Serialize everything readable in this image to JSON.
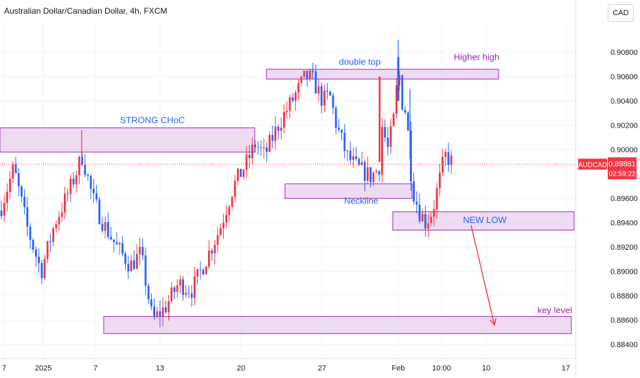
{
  "header": {
    "title": "Australian Dollar/Canadian Dollar, 4h, FXCM",
    "currency": "CAD"
  },
  "price_tag": {
    "symbol": "AUDCAD",
    "price": "0.89881",
    "countdown": "02:59:22",
    "color": "#f23645"
  },
  "colors": {
    "up": "#f23645",
    "down": "#2962ff",
    "zone_fill": "#e1bee7",
    "zone_stroke": "#9c27b0",
    "label_blue": "#2962ff",
    "label_purple": "#9c27b0",
    "arrow": "#f23645"
  },
  "chart_data": {
    "type": "candlestick",
    "title": "Australian Dollar/Canadian Dollar, 4h, FXCM",
    "ylim": [
      0.883,
      0.9106
    ],
    "y_ticks": [
      "0.90800",
      "0.90600",
      "0.90400",
      "0.90200",
      "0.90000",
      "0.89600",
      "0.89400",
      "0.89200",
      "0.89000",
      "0.88800",
      "0.88600",
      "0.88400"
    ],
    "y_tick_values": [
      0.908,
      0.906,
      0.904,
      0.902,
      0.9,
      0.896,
      0.894,
      0.892,
      0.89,
      0.888,
      0.886,
      0.884
    ],
    "x_ticks": [
      "7",
      "2025",
      "7",
      "13",
      "20",
      "27",
      "Feb",
      "10:00",
      "10",
      "17"
    ],
    "x_tick_positions": [
      6,
      63,
      139,
      233,
      351,
      469,
      580,
      643,
      708,
      824
    ],
    "current_price": 0.89881,
    "anchors": [
      [
        0,
        0.895
      ],
      [
        20,
        0.8985
      ],
      [
        40,
        0.8935
      ],
      [
        60,
        0.89
      ],
      [
        80,
        0.894
      ],
      [
        100,
        0.8965
      ],
      [
        120,
        0.8995
      ],
      [
        135,
        0.896
      ],
      [
        150,
        0.894
      ],
      [
        170,
        0.892
      ],
      [
        190,
        0.8905
      ],
      [
        205,
        0.8915
      ],
      [
        222,
        0.886
      ],
      [
        240,
        0.887
      ],
      [
        260,
        0.889
      ],
      [
        280,
        0.8885
      ],
      [
        300,
        0.891
      ],
      [
        320,
        0.8935
      ],
      [
        340,
        0.897
      ],
      [
        360,
        0.899
      ],
      [
        372,
        0.9005
      ],
      [
        385,
        0.8995
      ],
      [
        405,
        0.902
      ],
      [
        425,
        0.904
      ],
      [
        445,
        0.906
      ],
      [
        455,
        0.9058
      ],
      [
        470,
        0.904
      ],
      [
        480,
        0.9045
      ],
      [
        490,
        0.902
      ],
      [
        505,
        0.8995
      ],
      [
        520,
        0.8985
      ],
      [
        540,
        0.8978
      ],
      [
        552,
        0.8985
      ],
      [
        556,
        0.902
      ],
      [
        565,
        0.9
      ],
      [
        575,
        0.903
      ],
      [
        580,
        0.907
      ],
      [
        585,
        0.904
      ],
      [
        592,
        0.903
      ],
      [
        600,
        0.897
      ],
      [
        610,
        0.895
      ],
      [
        620,
        0.894
      ],
      [
        630,
        0.895
      ],
      [
        640,
        0.8975
      ],
      [
        648,
        0.8995
      ],
      [
        655,
        0.8992
      ],
      [
        660,
        0.8988
      ]
    ],
    "spikes": [
      [
        119,
        0.9016
      ],
      [
        580,
        0.909
      ],
      [
        553,
        0.906
      ],
      [
        455,
        0.9065
      ],
      [
        597,
        0.905
      ]
    ],
    "zones": [
      {
        "x0": 0,
        "x1": 371,
        "y0": 0.9018,
        "y1": 0.8998,
        "label": "STRONG CHoC",
        "label_price": 0.9024,
        "label_x": 222,
        "label_color": "blue",
        "label_position": "above"
      },
      {
        "x0": 388,
        "x1": 726,
        "y0": 0.9066,
        "y1": 0.9058,
        "label": "double top",
        "label_price": 0.9072,
        "label_x": 524,
        "label_color": "blue",
        "label_position": "above"
      },
      {
        "x0": 415,
        "x1": 600,
        "y0": 0.8972,
        "y1": 0.896,
        "label": "Neckline",
        "label_price": 0.8958,
        "label_x": 526,
        "label_color": "blue",
        "label_position": "below"
      },
      {
        "x0": 572,
        "x1": 836,
        "y0": 0.8949,
        "y1": 0.8934,
        "label": "NEW LOW",
        "label_price": 0.8942,
        "label_x": 706,
        "label_color": "blue",
        "label_position": "inside"
      },
      {
        "x0": 151,
        "x1": 832,
        "y0": 0.8863,
        "y1": 0.8849,
        "label": "key level",
        "label_price": 0.8868,
        "label_x": 808,
        "label_color": "purple",
        "label_position": "above"
      }
    ],
    "annotations": [
      {
        "text": "Higher high",
        "x": 694,
        "price": 0.9076,
        "color": "purple"
      }
    ],
    "arrow": {
      "from": [
        686,
        0.8938
      ],
      "to": [
        720,
        0.8856
      ]
    }
  }
}
